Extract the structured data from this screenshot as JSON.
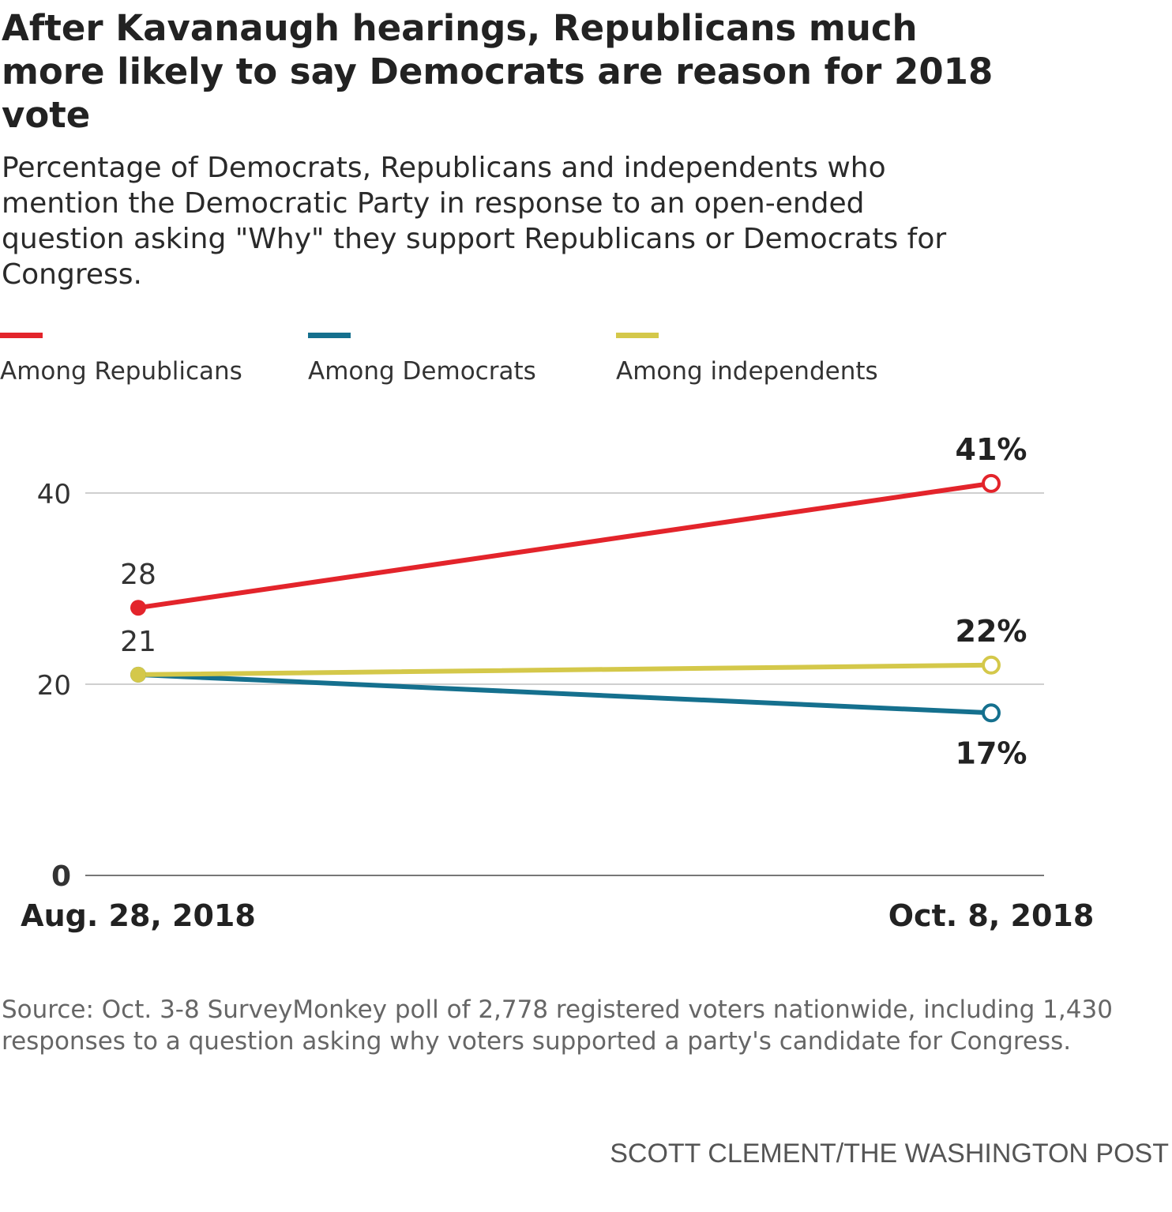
{
  "header": {
    "title": "After Kavanaugh hearings, Republicans much more likely to say Democrats are reason for 2018 vote",
    "subtitle": "Percentage of Democrats, Republicans and independents who mention the Democratic Party in response to an open-ended question asking \"Why\" they support Republicans or Democrats for Congress."
  },
  "legend": [
    {
      "label": "Among Republicans",
      "color": "#e3242b"
    },
    {
      "label": "Among Democrats",
      "color": "#15708e"
    },
    {
      "label": "Among independents",
      "color": "#d4c84a"
    }
  ],
  "chart_data": {
    "type": "line",
    "title": "After Kavanaugh hearings, Republicans much more likely to say Democrats are reason for 2018 vote",
    "xlabel": "",
    "ylabel": "",
    "categories": [
      "Aug. 28, 2018",
      "Oct. 8, 2018"
    ],
    "ylim": [
      0,
      45
    ],
    "yticks": [
      {
        "value": 0,
        "label": "0"
      },
      {
        "value": 20,
        "label": "20"
      },
      {
        "value": 40,
        "label": "40"
      }
    ],
    "grid": true,
    "legend_position": "top",
    "series": [
      {
        "name": "Among Republicans",
        "color": "#e3242b",
        "values": [
          28,
          41
        ],
        "labels": [
          "28",
          "41%"
        ],
        "end_label_position": "above"
      },
      {
        "name": "Among Democrats",
        "color": "#15708e",
        "values": [
          21,
          17
        ],
        "labels": [
          "",
          "17%"
        ],
        "end_label_position": "below"
      },
      {
        "name": "Among independents",
        "color": "#d4c84a",
        "values": [
          21,
          22
        ],
        "labels": [
          "21",
          "22%"
        ],
        "end_label_position": "above"
      }
    ]
  },
  "footer": {
    "source": "Source: Oct. 3-8 SurveyMonkey poll of 2,778 registered voters nationwide, including 1,430 responses to a question asking why voters supported a party's candidate for Congress.",
    "credit": "SCOTT CLEMENT/THE WASHINGTON POST"
  }
}
